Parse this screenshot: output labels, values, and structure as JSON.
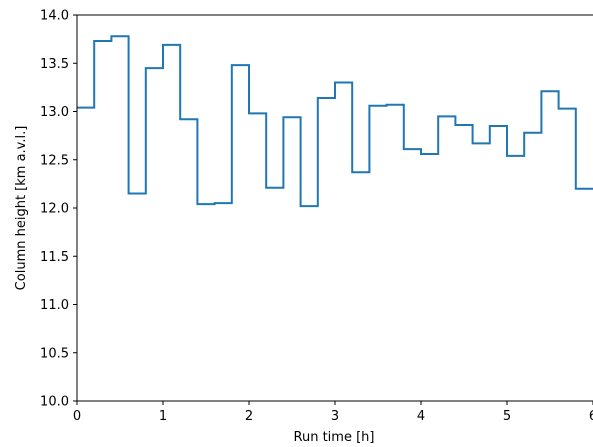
{
  "chart_data": {
    "type": "line",
    "line_style": "step-post",
    "xlabel": "Run time [h]",
    "ylabel": "Column height [km a.v.l.]",
    "xlim": [
      0,
      6
    ],
    "ylim": [
      10.0,
      14.0
    ],
    "xticks": [
      0,
      1,
      2,
      3,
      4,
      5,
      6
    ],
    "xtick_labels": [
      "0",
      "1",
      "2",
      "3",
      "4",
      "5",
      "6"
    ],
    "yticks": [
      10.0,
      10.5,
      11.0,
      11.5,
      12.0,
      12.5,
      13.0,
      13.5,
      14.0
    ],
    "ytick_labels": [
      "10.0",
      "10.5",
      "11.0",
      "11.5",
      "12.0",
      "12.5",
      "13.0",
      "13.5",
      "14.0"
    ],
    "grid": false,
    "series": [
      {
        "color": "#1f77b4",
        "x": [
          0.0,
          0.2,
          0.4,
          0.6,
          0.8,
          1.0,
          1.2,
          1.4,
          1.6,
          1.8,
          2.0,
          2.2,
          2.4,
          2.6,
          2.8,
          3.0,
          3.2,
          3.4,
          3.6,
          3.8,
          4.0,
          4.2,
          4.4,
          4.6,
          4.8,
          5.0,
          5.2,
          5.4,
          5.6,
          5.8,
          6.0
        ],
        "y": [
          13.04,
          13.73,
          13.78,
          12.15,
          13.45,
          13.69,
          12.92,
          12.04,
          12.05,
          13.48,
          12.98,
          12.21,
          12.94,
          12.02,
          13.14,
          13.3,
          12.37,
          13.06,
          13.07,
          12.61,
          12.56,
          12.95,
          12.86,
          12.67,
          12.85,
          12.54,
          12.78,
          13.21,
          13.03,
          12.2,
          12.2
        ]
      }
    ]
  }
}
